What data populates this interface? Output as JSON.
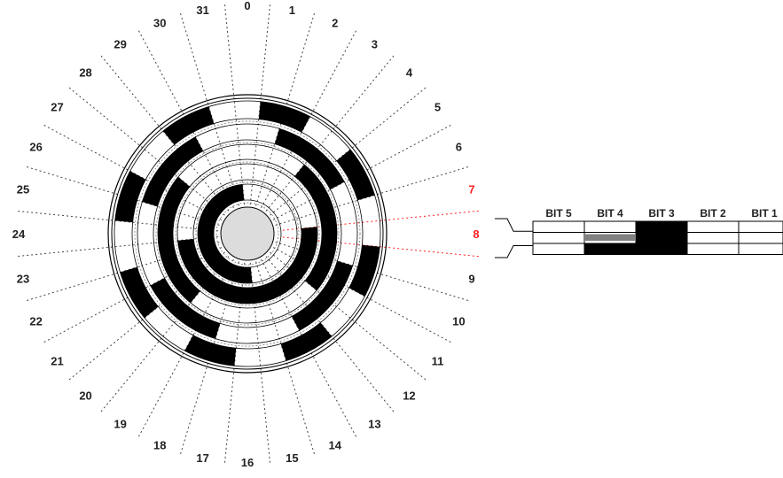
{
  "sector_labels": [
    "0",
    "1",
    "2",
    "3",
    "4",
    "5",
    "6",
    "7",
    "8",
    "9",
    "10",
    "11",
    "12",
    "13",
    "14",
    "15",
    "16",
    "17",
    "18",
    "19",
    "20",
    "21",
    "22",
    "23",
    "24",
    "25",
    "26",
    "27",
    "28",
    "29",
    "30",
    "31"
  ],
  "highlighted_sectors": [
    "7",
    "8"
  ],
  "bit_table": {
    "headers": [
      "BIT 5",
      "BIT 4",
      "BIT 3",
      "BIT 2",
      "BIT 1"
    ]
  },
  "colors": {
    "highlight": "#ff2020",
    "ink": "#000000",
    "hub": "#dcdcdc",
    "gray_bit": "#808080"
  }
}
